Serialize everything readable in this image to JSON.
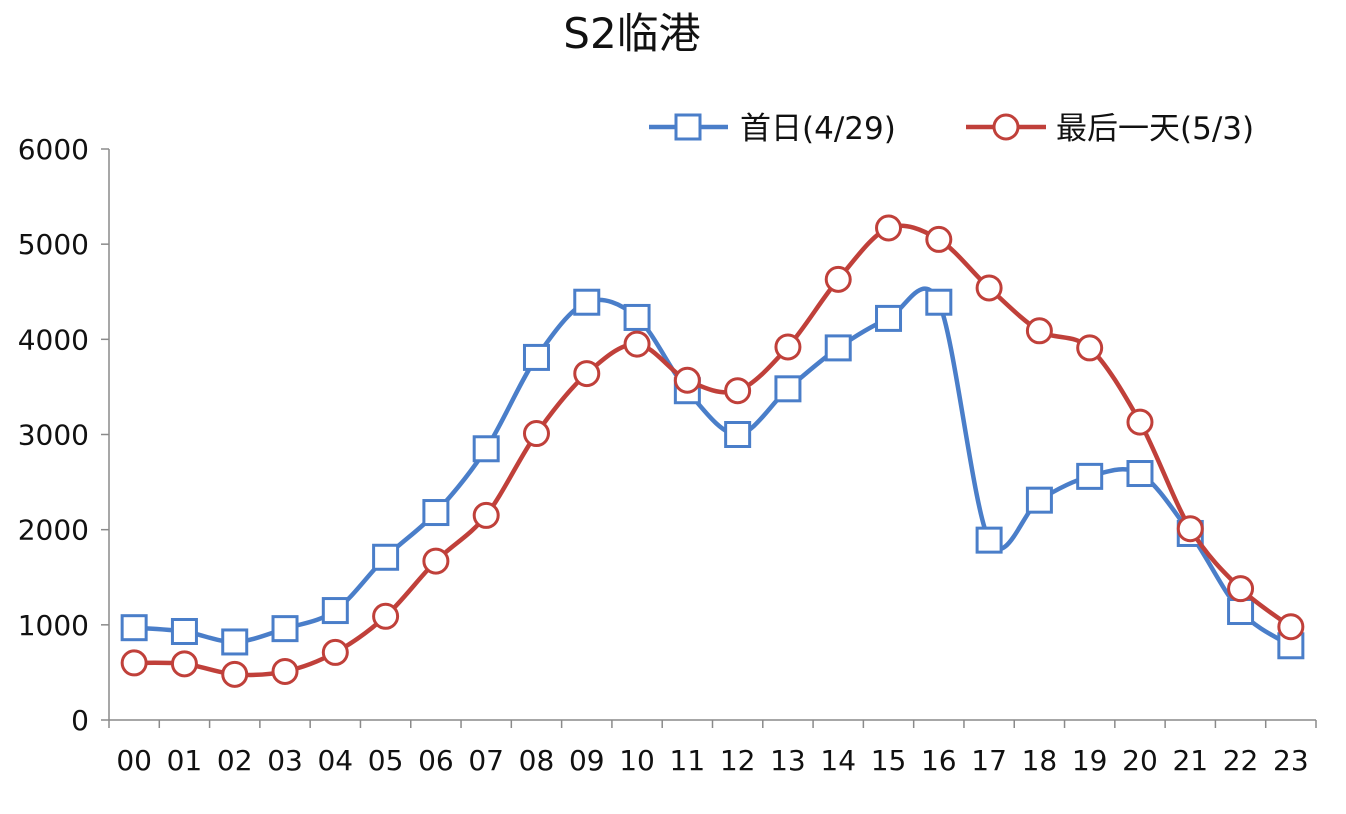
{
  "chart_data": {
    "type": "line",
    "title": "S2临港",
    "xlabel": "",
    "ylabel": "",
    "categories": [
      "00",
      "01",
      "02",
      "03",
      "04",
      "05",
      "06",
      "07",
      "08",
      "09",
      "10",
      "11",
      "12",
      "13",
      "14",
      "15",
      "16",
      "17",
      "18",
      "19",
      "20",
      "21",
      "22",
      "23"
    ],
    "ylim": [
      0,
      6000
    ],
    "yticks": [
      0,
      1000,
      2000,
      3000,
      4000,
      5000,
      6000
    ],
    "grid": false,
    "legend_position": "top-right",
    "series": [
      {
        "name": "首日(4/29)",
        "color": "#4a7ec9",
        "marker": "square",
        "values": [
          970,
          930,
          820,
          960,
          1150,
          1710,
          2180,
          2850,
          3810,
          4390,
          4230,
          3460,
          3000,
          3480,
          3910,
          4220,
          4390,
          1890,
          2310,
          2560,
          2590,
          1960,
          1140,
          780
        ]
      },
      {
        "name": "最后一天(5/3)",
        "color": "#c0403a",
        "marker": "circle",
        "values": [
          600,
          590,
          480,
          510,
          710,
          1090,
          1670,
          2150,
          3010,
          3640,
          3950,
          3570,
          3460,
          3920,
          4630,
          5170,
          5050,
          4540,
          4090,
          3910,
          3130,
          2010,
          1380,
          980
        ]
      }
    ]
  }
}
